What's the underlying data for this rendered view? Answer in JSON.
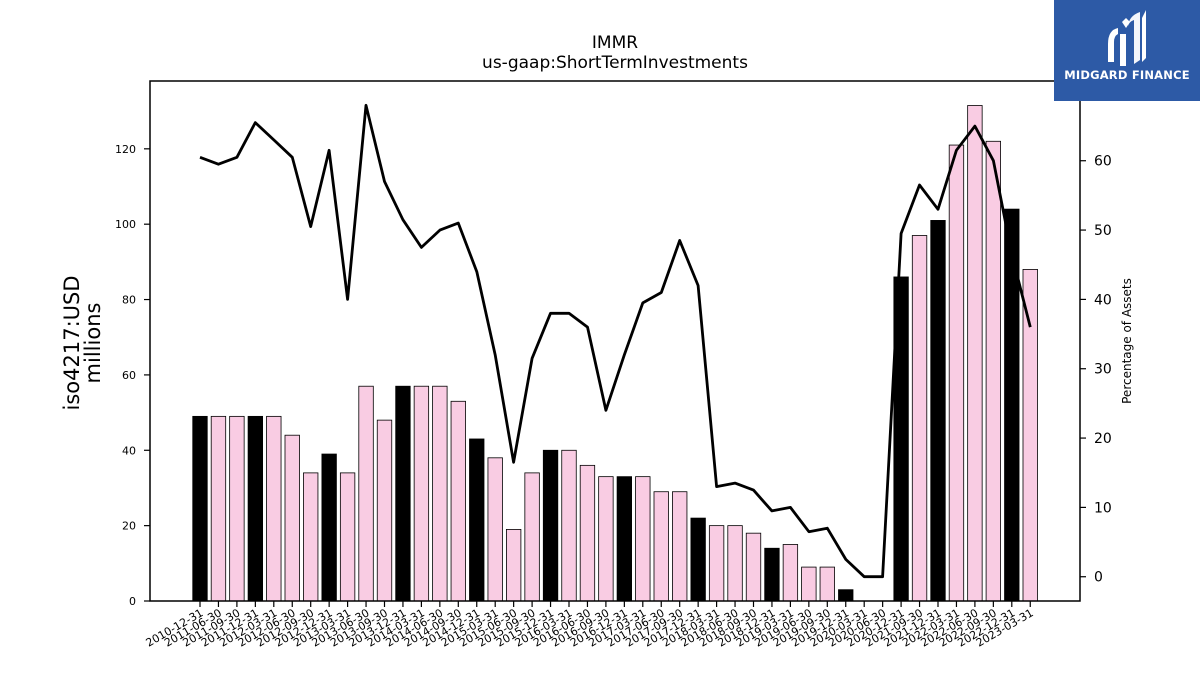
{
  "logo": {
    "text": "MIDGARD FINANCE",
    "bg_color": "#2d5aa6"
  },
  "chart_data": {
    "type": "bar",
    "title": "IMMR",
    "subtitle": "us-gaap:ShortTermInvestments",
    "ylabel_line1": "iso4217:USD",
    "ylabel_line2": "millions",
    "y2label": "Percentage of Assets",
    "ylim": [
      0,
      138
    ],
    "y2lim": [
      -3.5,
      71.5
    ],
    "yticks": [
      0,
      20,
      40,
      60,
      80,
      100,
      120
    ],
    "y2ticks": [
      0,
      10,
      20,
      30,
      40,
      50,
      60
    ],
    "grid": false,
    "colors": {
      "annual_bar": "#000000",
      "quarter_bar": "#f9cce3",
      "line": "#000000"
    },
    "categories": [
      "2010-12-31",
      "2011-06-30",
      "2011-09-30",
      "2011-12-31",
      "2012-03-31",
      "2012-06-30",
      "2012-09-30",
      "2012-12-31",
      "2013-03-31",
      "2013-06-30",
      "2013-09-30",
      "2013-12-31",
      "2014-03-31",
      "2014-06-30",
      "2014-09-30",
      "2014-12-31",
      "2015-03-31",
      "2015-06-30",
      "2015-09-30",
      "2015-12-31",
      "2016-03-31",
      "2016-06-30",
      "2016-09-30",
      "2016-12-31",
      "2017-03-31",
      "2017-06-30",
      "2017-09-30",
      "2017-12-31",
      "2018-03-31",
      "2018-06-30",
      "2018-09-30",
      "2018-12-31",
      "2019-03-31",
      "2019-06-30",
      "2019-09-30",
      "2019-12-31",
      "2020-03-31",
      "2020-06-30",
      "2020-12-31",
      "2021-09-30",
      "2021-12-31",
      "2022-03-31",
      "2022-06-30",
      "2022-09-30",
      "2022-12-31",
      "2023-03-31"
    ],
    "series": [
      {
        "role": "bars",
        "values": [
          49,
          49,
          49,
          49,
          49,
          44,
          34,
          39,
          34,
          57,
          48,
          57,
          57,
          57,
          53,
          43,
          38,
          19,
          34,
          40,
          40,
          36,
          33,
          33,
          33,
          29,
          29,
          22,
          20,
          20,
          18,
          14,
          15,
          9,
          9,
          3,
          0,
          0,
          86,
          97,
          101,
          121,
          131.5,
          122,
          104,
          88
        ],
        "annual": [
          true,
          false,
          false,
          true,
          false,
          false,
          false,
          true,
          false,
          false,
          false,
          true,
          false,
          false,
          false,
          true,
          false,
          false,
          false,
          true,
          false,
          false,
          false,
          true,
          false,
          false,
          false,
          true,
          false,
          false,
          false,
          true,
          false,
          false,
          false,
          true,
          false,
          false,
          true,
          false,
          true,
          false,
          false,
          false,
          true,
          false
        ]
      },
      {
        "role": "line",
        "axis": "right",
        "values": [
          60.5,
          59.5,
          60.5,
          65.5,
          63,
          60.5,
          50.5,
          61.5,
          40,
          68,
          57,
          51.5,
          47.5,
          50,
          51,
          44,
          32,
          16.5,
          31.5,
          38,
          38,
          36,
          24,
          32,
          39.5,
          41,
          48.5,
          42,
          13,
          13.5,
          12.5,
          9.5,
          10,
          6.5,
          7,
          2.5,
          0,
          0,
          49.5,
          56.5,
          53,
          61.5,
          65,
          60,
          46.5,
          36
        ]
      }
    ]
  }
}
